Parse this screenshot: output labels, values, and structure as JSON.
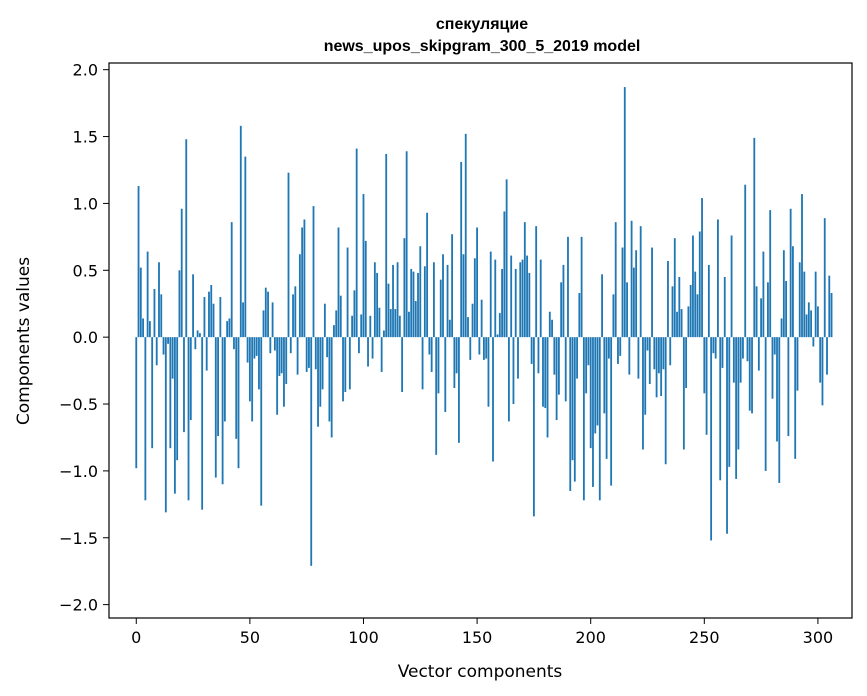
{
  "chart_data": {
    "type": "bar",
    "title": "спекуляцие",
    "subtitle": "news_upos_skipgram_300_5_2019 model",
    "xlabel": "Vector components",
    "ylabel": "Components values",
    "xlim": [
      -12,
      315
    ],
    "ylim": [
      -2.1,
      2.05
    ],
    "xticks": [
      0,
      50,
      100,
      150,
      200,
      250,
      300
    ],
    "xtick_labels": [
      "0",
      "50",
      "100",
      "150",
      "200",
      "250",
      "300"
    ],
    "yticks": [
      -2.0,
      -1.5,
      -1.0,
      -0.5,
      0.0,
      0.5,
      1.0,
      1.5,
      2.0
    ],
    "ytick_labels": [
      "−2.0",
      "−1.5",
      "−1.0",
      "−0.5",
      "0.0",
      "0.5",
      "1.0",
      "1.5",
      "2.0"
    ],
    "grid": false,
    "bar_color": "#1f77b4",
    "x_start": 0,
    "values": [
      -0.98,
      1.13,
      0.52,
      0.14,
      -1.22,
      0.64,
      0.12,
      -0.83,
      0.36,
      -0.21,
      0.56,
      0.32,
      -0.13,
      -1.31,
      -0.05,
      -0.83,
      -0.31,
      -1.17,
      -0.92,
      0.5,
      0.96,
      -0.71,
      1.48,
      -1.22,
      -0.62,
      0.47,
      -0.09,
      0.05,
      0.03,
      -1.29,
      0.3,
      -0.25,
      0.34,
      0.39,
      0.25,
      -1.05,
      -0.74,
      0.3,
      -1.1,
      -0.63,
      0.12,
      0.14,
      0.86,
      -0.09,
      -0.76,
      -0.98,
      1.58,
      0.26,
      1.35,
      -0.19,
      -0.48,
      -0.63,
      -0.16,
      -0.14,
      -0.39,
      -1.26,
      0.2,
      0.37,
      0.34,
      -0.12,
      0.26,
      -0.1,
      -0.58,
      -0.29,
      -0.27,
      -0.52,
      -0.35,
      1.23,
      -0.12,
      0.32,
      0.38,
      -0.28,
      0.62,
      0.82,
      0.88,
      -0.26,
      -0.23,
      -1.71,
      0.98,
      -0.24,
      -0.67,
      -0.52,
      -0.39,
      0.25,
      -0.15,
      -0.63,
      -0.75,
      0.09,
      0.2,
      0.82,
      0.31,
      -0.48,
      -0.41,
      0.67,
      -0.39,
      0.16,
      0.35,
      1.41,
      -0.12,
      0.17,
      1.07,
      0.72,
      -0.22,
      0.16,
      -0.16,
      0.56,
      0.48,
      0.22,
      -0.26,
      0.05,
      1.37,
      0.4,
      0.21,
      0.54,
      0.21,
      0.56,
      0.16,
      -0.41,
      0.74,
      1.39,
      0.19,
      0.51,
      0.49,
      0.27,
      0.48,
      0.68,
      -0.39,
      0.53,
      0.93,
      -0.13,
      -0.26,
      0.56,
      -0.88,
      -0.42,
      0.43,
      0.62,
      -0.56,
      0.54,
      0.13,
      0.77,
      -0.38,
      -0.27,
      -0.79,
      1.31,
      0.62,
      1.52,
      0.15,
      -0.17,
      0.25,
      0.59,
      0.82,
      -0.13,
      0.28,
      -0.17,
      -0.16,
      -0.52,
      0.64,
      -0.93,
      0.58,
      0.02,
      0.18,
      0.51,
      0.94,
      1.18,
      -0.63,
      0.61,
      -0.5,
      0.51,
      -0.31,
      0.56,
      0.58,
      0.86,
      0.61,
      0.48,
      -0.2,
      -1.34,
      0.83,
      -0.27,
      0.58,
      -0.52,
      -0.53,
      -0.75,
      0.19,
      0.13,
      -0.28,
      -0.62,
      -0.43,
      0.41,
      0.54,
      -0.48,
      0.75,
      -1.15,
      -0.92,
      -1.08,
      -0.31,
      0.33,
      0.75,
      -1.22,
      -0.42,
      -0.21,
      -0.83,
      -1.12,
      -0.72,
      -0.66,
      -1.22,
      0.47,
      -0.57,
      -0.91,
      -0.16,
      -1.11,
      0.32,
      0.86,
      -0.2,
      -0.14,
      0.67,
      1.87,
      0.41,
      -0.28,
      0.87,
      0.52,
      0.65,
      -0.31,
      0.83,
      -0.84,
      -0.58,
      -0.1,
      -0.35,
      0.67,
      -0.24,
      -0.45,
      -0.27,
      -0.44,
      -0.24,
      -0.95,
      0.57,
      -0.21,
      0.38,
      0.74,
      0.19,
      0.45,
      0.21,
      -0.84,
      -0.38,
      0.23,
      0.39,
      0.76,
      0.49,
      0.32,
      0.79,
      1.04,
      -0.42,
      -0.73,
      0.54,
      -1.52,
      -0.12,
      -0.16,
      0.88,
      -1.07,
      -0.23,
      0.45,
      -1.47,
      -0.97,
      0.76,
      -0.34,
      -1.06,
      -0.84,
      -0.34,
      -0.16,
      1.14,
      -0.18,
      -0.55,
      -0.57,
      1.49,
      0.38,
      -0.25,
      0.29,
      0.64,
      -1.0,
      0.41,
      0.95,
      -0.46,
      -0.13,
      -0.78,
      -1.09,
      0.14,
      0.65,
      0.42,
      -0.74,
      0.96,
      0.68,
      -0.91,
      -0.4,
      0.56,
      1.07,
      0.49,
      0.17,
      0.26,
      0.2,
      -0.07,
      0.49,
      0.23,
      -0.34,
      -0.51,
      0.89,
      -0.28,
      0.46,
      0.33
    ]
  }
}
